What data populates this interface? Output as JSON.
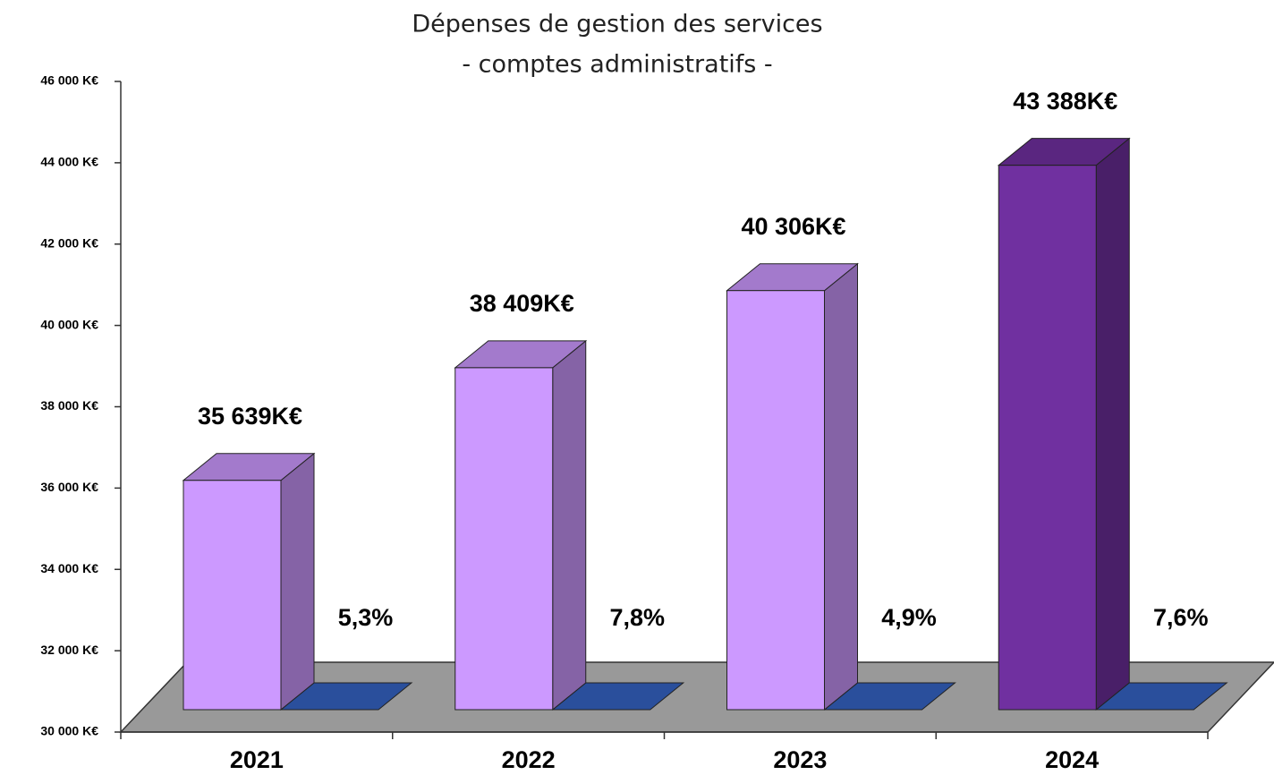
{
  "chart_data": {
    "type": "bar3d",
    "title": "Dépenses de gestion des services",
    "subtitle": "- comptes administratifs -",
    "categories": [
      "2021",
      "2022",
      "2023",
      "2024"
    ],
    "series": [
      {
        "values": [
          35639,
          38409,
          40306,
          43388
        ],
        "value_labels": [
          "35 639K€",
          "38 409K€",
          "40 306K€",
          "43 388K€"
        ],
        "colors": [
          "#cc99ff",
          "#cc99ff",
          "#cc99ff",
          "#7030a0"
        ]
      },
      {
        "values": [
          5.3,
          7.8,
          4.9,
          7.6
        ],
        "value_labels": [
          "5,3%",
          "7,8%",
          "4,9%",
          "7,6%"
        ],
        "color": "#2a4f9c"
      }
    ],
    "ylim": [
      30000,
      46000
    ],
    "yticks": [
      {
        "value": 30000,
        "label": "30 000 K€"
      },
      {
        "value": 32000,
        "label": "32 000 K€"
      },
      {
        "value": 34000,
        "label": "34 000 K€"
      },
      {
        "value": 36000,
        "label": "36 000 K€"
      },
      {
        "value": 38000,
        "label": "38 000 K€"
      },
      {
        "value": 40000,
        "label": "40 000 K€"
      },
      {
        "value": 42000,
        "label": "42 000 K€"
      },
      {
        "value": 44000,
        "label": "44 000 K€"
      },
      {
        "value": 46000,
        "label": "46 000 K€"
      }
    ]
  }
}
